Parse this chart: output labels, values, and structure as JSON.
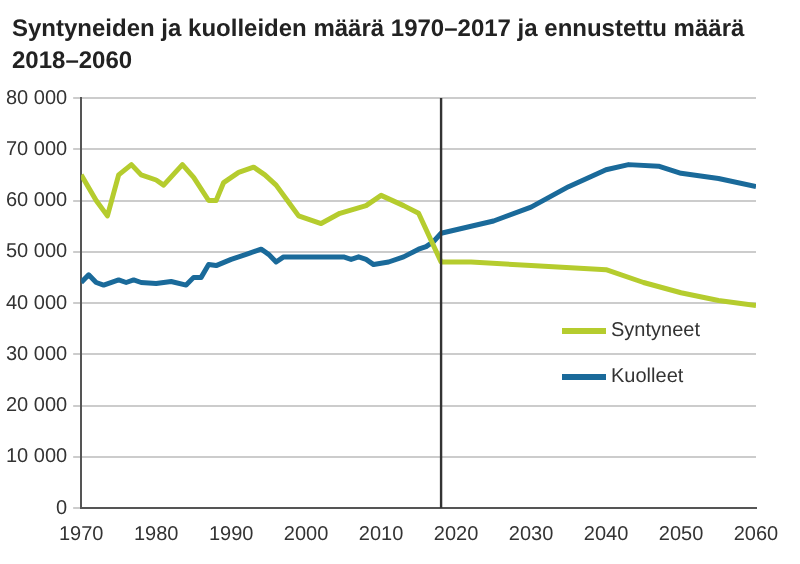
{
  "chart_data": {
    "type": "line",
    "title": "Syntyneiden ja kuolleiden määrä 1970–2017 ja ennustettu määrä 2018–2060",
    "xlim": [
      1970,
      2060
    ],
    "xticks": [
      1970,
      1980,
      1990,
      2000,
      2010,
      2020,
      2030,
      2040,
      2050,
      2060
    ],
    "ylim": [
      0,
      80000
    ],
    "yticks": [
      {
        "value": 0,
        "label": "0"
      },
      {
        "value": 10000,
        "label": "10 000"
      },
      {
        "value": 20000,
        "label": "20 000"
      },
      {
        "value": 30000,
        "label": "30 000"
      },
      {
        "value": 40000,
        "label": "40 000"
      },
      {
        "value": 50000,
        "label": "50 000"
      },
      {
        "value": 60000,
        "label": "60 000"
      },
      {
        "value": 70000,
        "label": "70 000"
      },
      {
        "value": 80000,
        "label": "80 000"
      }
    ],
    "grid": "y",
    "legend": "right",
    "marker": "none",
    "line_style": "solid",
    "ref_lines": [
      {
        "axis": "x",
        "value": 2018,
        "color": "#333333"
      }
    ],
    "series": [
      {
        "name": "Syntyneet",
        "color": "#b5cc2e",
        "x": [
          1970,
          1972,
          1973.5,
          1975,
          1976.7,
          1978,
          1980,
          1981,
          1983.5,
          1985,
          1987,
          1988,
          1989,
          1991,
          1993,
          1994.5,
          1996,
          1997.5,
          1999,
          2002,
          2004.5,
          2008,
          2010,
          2013,
          2015,
          2018,
          2022,
          2030,
          2040,
          2045,
          2050,
          2055,
          2060
        ],
        "values": [
          65000,
          60000,
          57000,
          65000,
          67000,
          65000,
          64000,
          63000,
          67000,
          64500,
          60000,
          60000,
          63500,
          65500,
          66500,
          65000,
          63000,
          60000,
          57000,
          55500,
          57500,
          59000,
          61000,
          59000,
          57500,
          48000,
          48000,
          47300,
          46500,
          44000,
          42000,
          40500,
          39500
        ]
      },
      {
        "name": "Kuolleet",
        "color": "#1a6a9a",
        "x": [
          1970,
          1971,
          1972,
          1973,
          1975,
          1976,
          1977,
          1978,
          1980,
          1982,
          1984,
          1985,
          1986,
          1987,
          1988,
          1990,
          1992,
          1994,
          1995,
          1996,
          1997,
          2000,
          2005,
          2006,
          2007,
          2008,
          2009,
          2011,
          2013,
          2015,
          2016,
          2017,
          2018,
          2025,
          2030,
          2035,
          2040,
          2043,
          2047,
          2050,
          2055,
          2060
        ],
        "values": [
          44000,
          45500,
          44000,
          43500,
          44500,
          44000,
          44500,
          44000,
          43800,
          44200,
          43500,
          45000,
          45000,
          47500,
          47300,
          48500,
          49500,
          50500,
          49500,
          48000,
          49000,
          49000,
          49000,
          48500,
          49000,
          48500,
          47500,
          48000,
          49000,
          50500,
          51000,
          52000,
          53600,
          56000,
          58700,
          62700,
          66000,
          67000,
          66700,
          65300,
          64300,
          62700
        ]
      }
    ]
  }
}
